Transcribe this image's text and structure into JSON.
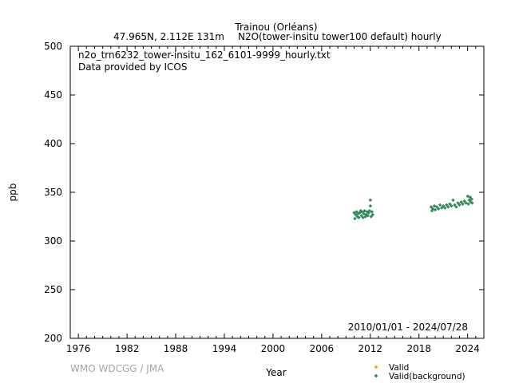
{
  "title": {
    "station": "Trainou (Orléans)",
    "subtitle_left": "47.965N, 2.112E 131m",
    "subtitle_right": "N2O(tower-insitu tower100 default) hourly"
  },
  "annotations": {
    "filename": "n2o_trn6232_tower-insitu_162_6101-9999_hourly.txt",
    "provider": "Data provided by ICOS",
    "date_range": "2010/01/01 - 2024/07/28"
  },
  "watermark": "WMO WDCGG / JMA",
  "chart_data": {
    "type": "scatter",
    "xlabel": "Year",
    "ylabel": "ppb",
    "xlim": [
      1975,
      2026
    ],
    "ylim": [
      200,
      500
    ],
    "x_ticks": [
      "1976",
      "1982",
      "1988",
      "1994",
      "2000",
      "2006",
      "2012",
      "2018",
      "2024"
    ],
    "y_ticks": [
      "200",
      "250",
      "300",
      "350",
      "400",
      "450",
      "500"
    ],
    "grid": false,
    "legend_position": "bottom-right",
    "series": [
      {
        "name": "Valid",
        "color": "#e0b000",
        "marker": "diamond",
        "points": []
      },
      {
        "name": "Valid(background)",
        "color": "#2e8b57",
        "marker": "diamond",
        "points": [
          [
            2010.0,
            329
          ],
          [
            2010.1,
            323
          ],
          [
            2010.2,
            327
          ],
          [
            2010.3,
            330
          ],
          [
            2010.4,
            325
          ],
          [
            2010.5,
            328
          ],
          [
            2010.6,
            324
          ],
          [
            2010.7,
            329
          ],
          [
            2010.8,
            331
          ],
          [
            2010.9,
            326
          ],
          [
            2011.0,
            330
          ],
          [
            2011.1,
            324
          ],
          [
            2011.2,
            328
          ],
          [
            2011.3,
            331
          ],
          [
            2011.4,
            325
          ],
          [
            2011.5,
            327
          ],
          [
            2011.6,
            330
          ],
          [
            2011.7,
            326
          ],
          [
            2011.8,
            329
          ],
          [
            2011.9,
            331
          ],
          [
            2012.0,
            336
          ],
          [
            2012.0,
            342
          ],
          [
            2012.1,
            325
          ],
          [
            2012.2,
            330
          ],
          [
            2012.3,
            327
          ],
          [
            2019.5,
            335
          ],
          [
            2019.6,
            331
          ],
          [
            2019.7,
            333
          ],
          [
            2019.9,
            336
          ],
          [
            2020.0,
            332
          ],
          [
            2020.2,
            335
          ],
          [
            2020.4,
            333
          ],
          [
            2020.6,
            337
          ],
          [
            2020.8,
            334
          ],
          [
            2021.0,
            336
          ],
          [
            2021.2,
            334
          ],
          [
            2021.4,
            337
          ],
          [
            2021.6,
            335
          ],
          [
            2021.8,
            338
          ],
          [
            2022.0,
            336
          ],
          [
            2022.2,
            342
          ],
          [
            2022.4,
            337
          ],
          [
            2022.6,
            335
          ],
          [
            2022.8,
            339
          ],
          [
            2023.0,
            337
          ],
          [
            2023.2,
            340
          ],
          [
            2023.4,
            338
          ],
          [
            2023.6,
            341
          ],
          [
            2023.8,
            339
          ],
          [
            2024.0,
            346
          ],
          [
            2024.1,
            338
          ],
          [
            2024.2,
            342
          ],
          [
            2024.3,
            345
          ],
          [
            2024.4,
            340
          ],
          [
            2024.5,
            343
          ],
          [
            2024.56,
            339
          ]
        ]
      }
    ]
  }
}
